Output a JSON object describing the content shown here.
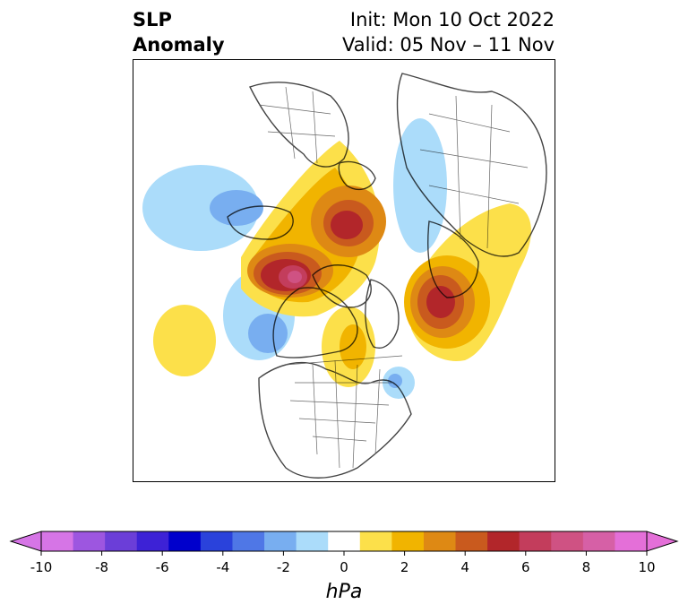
{
  "header": {
    "title_line1": "SLP",
    "title_line2": "Anomaly",
    "init_line": "Init: Mon 10 Oct 2022",
    "valid_line": "Valid: 05 Nov – 11 Nov"
  },
  "colorbar": {
    "unit": "hPa",
    "tick_labels": [
      "-10",
      "-8",
      "-6",
      "-4",
      "-2",
      "0",
      "2",
      "4",
      "6",
      "8",
      "10"
    ],
    "levels": [
      -10,
      -9,
      -8,
      -7,
      -6,
      -5,
      -4,
      -3,
      -2,
      -1,
      1,
      2,
      3,
      4,
      5,
      6,
      7,
      8,
      9,
      10
    ],
    "colors": [
      "#d675e6",
      "#9d56e0",
      "#6b3ed8",
      "#3d22d6",
      "#0000cc",
      "#2a42db",
      "#4f77e6",
      "#78aef0",
      "#abdcfa",
      "#ffffff",
      "#fce04a",
      "#f1b400",
      "#de8914",
      "#c95a1e",
      "#b2262a",
      "#c33d5c",
      "#cf5283",
      "#d660a6",
      "#e46fd8"
    ]
  },
  "map": {
    "projection": "north-polar-stereographic",
    "features": [
      {
        "name": "positive-anomaly-alaska-pacific",
        "peak_hpa": 9
      },
      {
        "name": "positive-anomaly-siberia-east",
        "peak_hpa": 6
      },
      {
        "name": "positive-anomaly-north-atlantic",
        "peak_hpa": 6
      },
      {
        "name": "positive-anomaly-canada-hudson",
        "peak_hpa": 2
      },
      {
        "name": "positive-anomaly-central-pacific",
        "peak_hpa": 2
      },
      {
        "name": "negative-anomaly-west-pacific",
        "peak_hpa": -3
      },
      {
        "name": "negative-anomaly-northeast-pacific",
        "peak_hpa": -3
      },
      {
        "name": "negative-anomaly-scandinavia-europe",
        "peak_hpa": -2
      },
      {
        "name": "negative-anomaly-us-east-coast",
        "peak_hpa": -2
      }
    ]
  }
}
